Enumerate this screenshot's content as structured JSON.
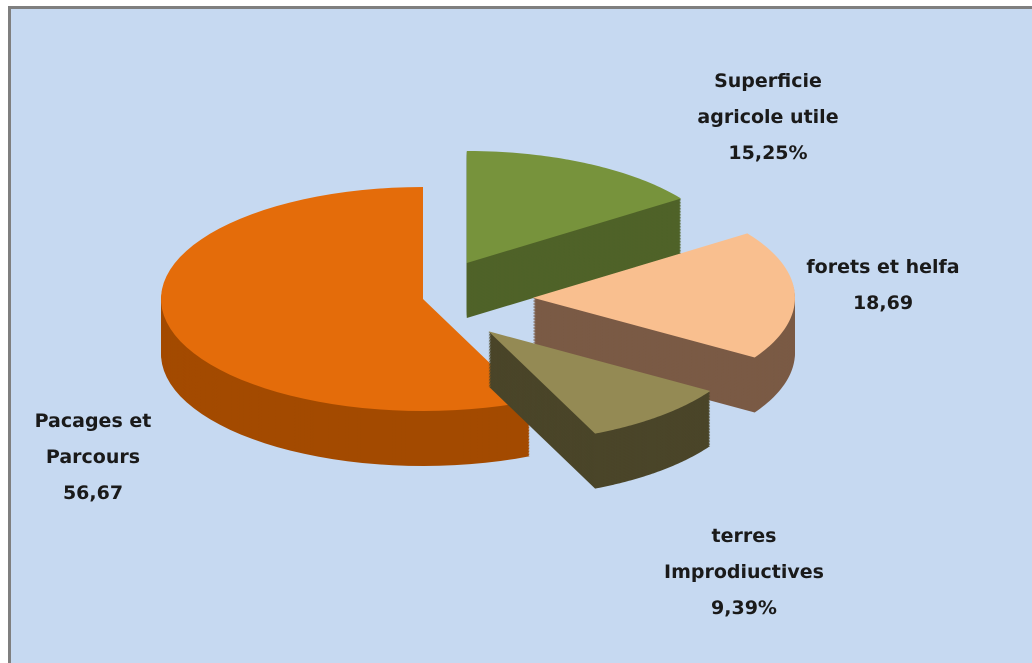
{
  "chart_data": {
    "type": "pie",
    "categories": [
      "Superficie agricole utile",
      "forets et helfa",
      "terres Improdiuctives",
      "Pacages et Parcours"
    ],
    "values": [
      15.25,
      18.69,
      9.39,
      56.67
    ],
    "value_labels": [
      "15,25%",
      "18,69",
      "9,39%",
      "56,67"
    ],
    "colors": [
      "#77933c",
      "#f9bf8f",
      "#948a54",
      "#e46c0a"
    ]
  }
}
